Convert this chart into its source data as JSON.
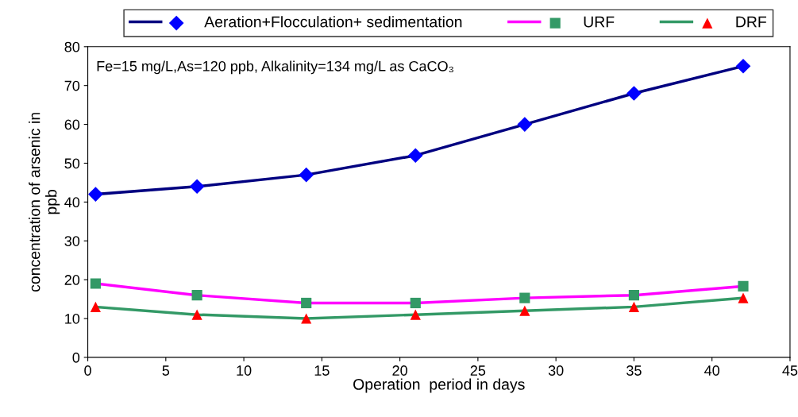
{
  "chart_data": {
    "type": "line",
    "xlabel": "Operation  period in days",
    "ylabel": "concentration of arsenic in\nppb",
    "x": [
      0.5,
      7,
      14,
      21,
      28,
      35,
      42
    ],
    "series": [
      {
        "name": "Aeration+Flocculation+ sedimentation",
        "color": "#000080",
        "marker": "diamond",
        "colors": [
          "#0000ff",
          "#0000ff",
          "#0000ff",
          "#0000ff",
          "#0000ff",
          "#0000ff",
          "#0000ff"
        ],
        "values": [
          42,
          44,
          47,
          52,
          60,
          68,
          75
        ]
      },
      {
        "name": "URF",
        "color": "#ff00ff",
        "marker": "square",
        "colors": [
          "#339966",
          "#339966",
          "#339966",
          "#339966",
          "#339966",
          "#339966",
          "#339966"
        ],
        "values": [
          19,
          16,
          14,
          14,
          15.3,
          16,
          18.3
        ]
      },
      {
        "name": "DRF",
        "color": "#339966",
        "marker": "triangle",
        "colors": [
          "#ff0000",
          "#ff0000",
          "#ff0000",
          "#ff0000",
          "#ff0000",
          "#ff0000",
          "#ff0000"
        ],
        "values": [
          13,
          11,
          10,
          11,
          12,
          13,
          15.3
        ]
      }
    ],
    "xlim": [
      0,
      45
    ],
    "xticks": [
      0,
      5,
      10,
      15,
      20,
      25,
      30,
      35,
      40,
      45
    ],
    "ylim": [
      0,
      80
    ],
    "yticks": [
      0,
      10,
      20,
      30,
      40,
      50,
      60,
      70,
      80
    ],
    "annotations": [
      "Fe=15 mg/L,As=120 ppb, Alkalinity=134 mg/L as CaCO₃"
    ],
    "legend": "top",
    "grid": false
  }
}
